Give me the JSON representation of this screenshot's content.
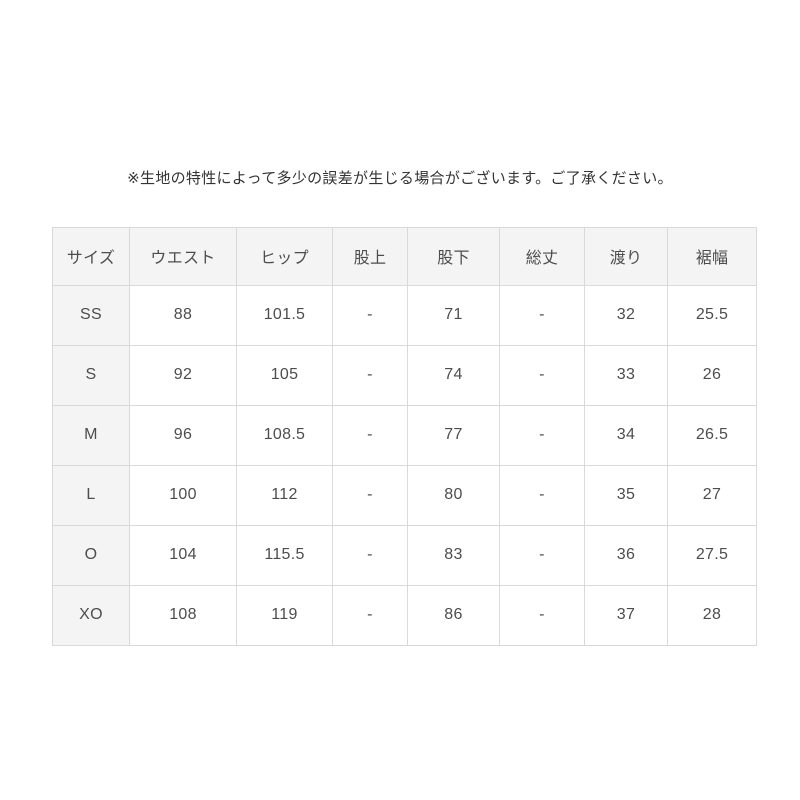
{
  "note": "※生地の特性によって多少の誤差が生じる場合がございます。ご了承ください。",
  "table": {
    "headers": [
      "サイズ",
      "ウエスト",
      "ヒップ",
      "股上",
      "股下",
      "総丈",
      "渡り",
      "裾幅"
    ],
    "rows": [
      {
        "size": "SS",
        "waist": "88",
        "hip": "101.5",
        "rise": "-",
        "inseam": "71",
        "total_length": "-",
        "watari": "32",
        "hem_width": "25.5"
      },
      {
        "size": "S",
        "waist": "92",
        "hip": "105",
        "rise": "-",
        "inseam": "74",
        "total_length": "-",
        "watari": "33",
        "hem_width": "26"
      },
      {
        "size": "M",
        "waist": "96",
        "hip": "108.5",
        "rise": "-",
        "inseam": "77",
        "total_length": "-",
        "watari": "34",
        "hem_width": "26.5"
      },
      {
        "size": "L",
        "waist": "100",
        "hip": "112",
        "rise": "-",
        "inseam": "80",
        "total_length": "-",
        "watari": "35",
        "hem_width": "27"
      },
      {
        "size": "O",
        "waist": "104",
        "hip": "115.5",
        "rise": "-",
        "inseam": "83",
        "total_length": "-",
        "watari": "36",
        "hem_width": "27.5"
      },
      {
        "size": "XO",
        "waist": "108",
        "hip": "119",
        "rise": "-",
        "inseam": "86",
        "total_length": "-",
        "watari": "37",
        "hem_width": "28"
      }
    ]
  },
  "colors": {
    "header_bg": "#f4f4f4",
    "border": "#d9d9d9",
    "table_text": "#4d4d4d",
    "note_text": "#333333",
    "page_bg": "#ffffff"
  }
}
